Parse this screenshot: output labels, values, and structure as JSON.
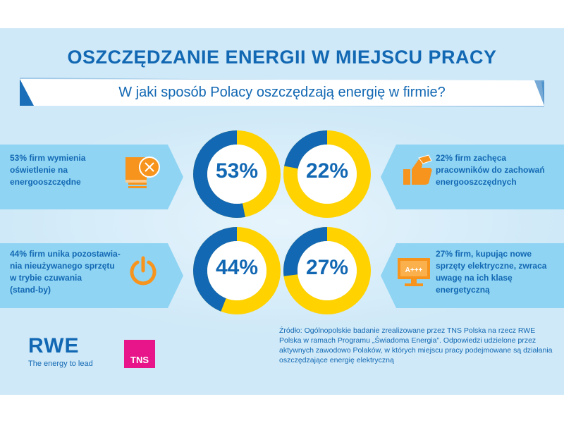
{
  "title": "OSZCZĘDZANIE ENERGII W MIEJSCU PRACY",
  "subtitle": "W jaki sposób Polacy oszczędzają energię w firmie?",
  "colors": {
    "primary": "#1268b3",
    "accent": "#ffd200",
    "icon": "#f7941d",
    "bg": "#cfe9f8",
    "box": "#8fd4f3"
  },
  "chart_data": [
    {
      "type": "pie",
      "variant": "donut",
      "label": "53%",
      "values": [
        53,
        47
      ],
      "text": [
        "53% firm wymienia",
        "oświetlenie na",
        "energooszczędne"
      ],
      "icon": "lightbulb-icon"
    },
    {
      "type": "pie",
      "variant": "donut",
      "label": "22%",
      "values": [
        22,
        78
      ],
      "text": [
        "22% firm zachęca",
        "pracowników do zachowań",
        "energooszczędnych"
      ],
      "icon": "thumbs-up-icon"
    },
    {
      "type": "pie",
      "variant": "donut",
      "label": "44%",
      "values": [
        44,
        56
      ],
      "text": [
        "44% firm unika pozostawia-",
        "nia nieużywanego sprzętu",
        "w trybie czuwania",
        "(stand-by)"
      ],
      "icon": "power-icon"
    },
    {
      "type": "pie",
      "variant": "donut",
      "label": "27%",
      "values": [
        27,
        73
      ],
      "text": [
        "27% firm, kupując nowe",
        "sprzęty elektryczne, zwraca",
        "uwagę na ich klasę",
        "energetyczną"
      ],
      "icon": "monitor-icon"
    }
  ],
  "monitor_label": "A+++",
  "source": "Źródło: Ogólnopolskie badanie zrealizowane przez TNS Polska na rzecz RWE Polska w ramach Programu „Świadoma Energia”. Odpowiedzi udzielone przez aktywnych zawodowo Polaków, w których miejscu pracy podejmowane są działania oszczędzające energię elektryczną",
  "logos": {
    "rwe": "RWE",
    "rwe_tagline": "The energy to lead",
    "tns": "TNS"
  }
}
